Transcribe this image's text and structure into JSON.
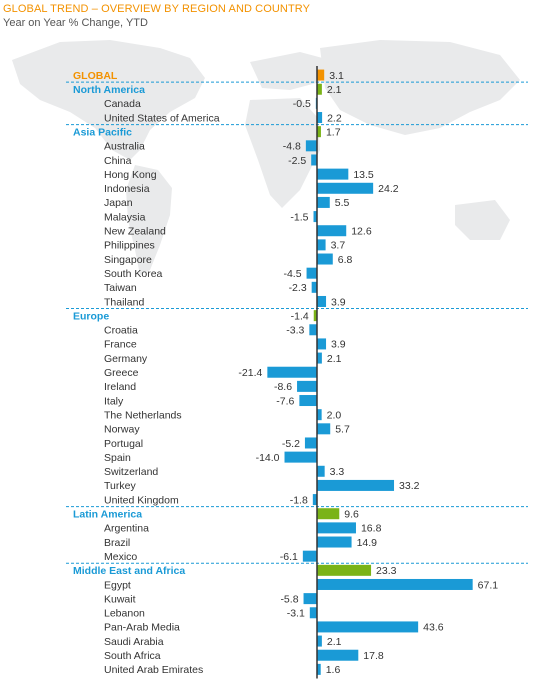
{
  "title": "GLOBAL TREND – OVERVIEW BY REGION AND COUNTRY",
  "subtitle": "Year on Year % Change, YTD",
  "colors": {
    "global": "#f39200",
    "region": "#7ab317",
    "country": "#1a9ad6",
    "region_label": "#1a9ad6",
    "axis": "#333333",
    "separator": "#1a9ad6"
  },
  "chart_data": {
    "type": "bar",
    "orientation": "horizontal",
    "unit": "%",
    "rows": [
      {
        "label": "GLOBAL",
        "value": 3.1,
        "kind": "global"
      },
      {
        "label": "North America",
        "value": 2.1,
        "kind": "region"
      },
      {
        "label": "Canada",
        "value": -0.5,
        "kind": "country"
      },
      {
        "label": "United States of America",
        "value": 2.2,
        "kind": "country"
      },
      {
        "label": "Asia Pacific",
        "value": 1.7,
        "kind": "region"
      },
      {
        "label": "Australia",
        "value": -4.8,
        "kind": "country"
      },
      {
        "label": "China",
        "value": -2.5,
        "kind": "country"
      },
      {
        "label": "Hong Kong",
        "value": 13.5,
        "kind": "country"
      },
      {
        "label": "Indonesia",
        "value": 24.2,
        "kind": "country"
      },
      {
        "label": "Japan",
        "value": 5.5,
        "kind": "country"
      },
      {
        "label": "Malaysia",
        "value": -1.5,
        "kind": "country"
      },
      {
        "label": "New Zealand",
        "value": 12.6,
        "kind": "country"
      },
      {
        "label": "Philippines",
        "value": 3.7,
        "kind": "country"
      },
      {
        "label": "Singapore",
        "value": 6.8,
        "kind": "country"
      },
      {
        "label": "South Korea",
        "value": -4.5,
        "kind": "country"
      },
      {
        "label": "Taiwan",
        "value": -2.3,
        "kind": "country"
      },
      {
        "label": "Thailand",
        "value": 3.9,
        "kind": "country"
      },
      {
        "label": "Europe",
        "value": -1.4,
        "kind": "region"
      },
      {
        "label": "Croatia",
        "value": -3.3,
        "kind": "country"
      },
      {
        "label": "France",
        "value": 3.9,
        "kind": "country"
      },
      {
        "label": "Germany",
        "value": 2.1,
        "kind": "country"
      },
      {
        "label": "Greece",
        "value": -21.4,
        "kind": "country"
      },
      {
        "label": "Ireland",
        "value": -8.6,
        "kind": "country"
      },
      {
        "label": "Italy",
        "value": -7.6,
        "kind": "country"
      },
      {
        "label": "The Netherlands",
        "value": 2.0,
        "kind": "country"
      },
      {
        "label": "Norway",
        "value": 5.7,
        "kind": "country"
      },
      {
        "label": "Portugal",
        "value": -5.2,
        "kind": "country"
      },
      {
        "label": "Spain",
        "value": -14.0,
        "kind": "country"
      },
      {
        "label": "Switzerland",
        "value": 3.3,
        "kind": "country"
      },
      {
        "label": "Turkey",
        "value": 33.2,
        "kind": "country"
      },
      {
        "label": "United Kingdom",
        "value": -1.8,
        "kind": "country"
      },
      {
        "label": "Latin America",
        "value": 9.6,
        "kind": "region"
      },
      {
        "label": "Argentina",
        "value": 16.8,
        "kind": "country"
      },
      {
        "label": "Brazil",
        "value": 14.9,
        "kind": "country"
      },
      {
        "label": "Mexico",
        "value": -6.1,
        "kind": "country"
      },
      {
        "label": "Middle East and Africa",
        "value": 23.3,
        "kind": "region"
      },
      {
        "label": "Egypt",
        "value": 67.1,
        "kind": "country"
      },
      {
        "label": "Kuwait",
        "value": -5.8,
        "kind": "country"
      },
      {
        "label": "Lebanon",
        "value": -3.1,
        "kind": "country"
      },
      {
        "label": "Pan-Arab Media",
        "value": 43.6,
        "kind": "country"
      },
      {
        "label": "Saudi Arabia",
        "value": 2.1,
        "kind": "country"
      },
      {
        "label": "South Africa",
        "value": 17.8,
        "kind": "country"
      },
      {
        "label": "United Arab Emirates",
        "value": 1.6,
        "kind": "country"
      }
    ]
  }
}
